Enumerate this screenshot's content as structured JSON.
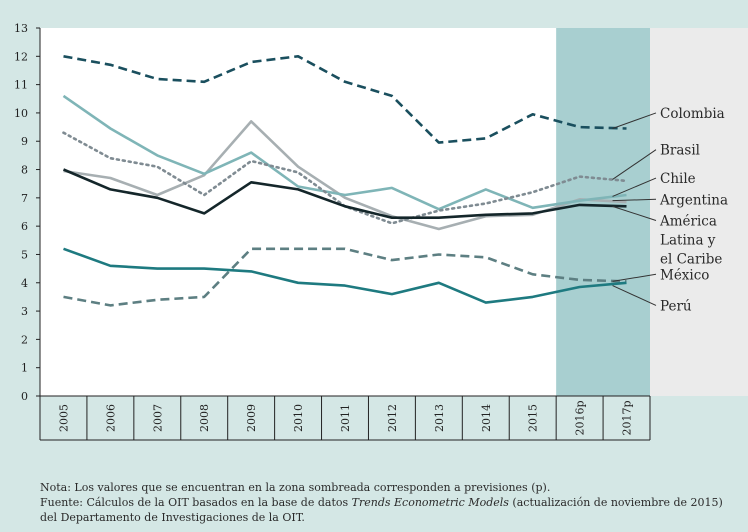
{
  "chart_data": {
    "type": "line",
    "categories": [
      "2005",
      "2006",
      "2007",
      "2008",
      "2009",
      "2010",
      "2011",
      "2012",
      "2013",
      "2014",
      "2015",
      "2016p",
      "2017p"
    ],
    "ylim": [
      0,
      13
    ],
    "yticks": [
      0,
      1,
      2,
      3,
      4,
      5,
      6,
      7,
      8,
      9,
      10,
      11,
      12,
      13
    ],
    "forecast_shaded_categories": [
      "2016p",
      "2017p"
    ],
    "grid": false,
    "series": [
      {
        "name": "Colombia",
        "color": "#1a4f5e",
        "dash": "dashed",
        "values": [
          12.0,
          11.7,
          11.2,
          11.1,
          11.8,
          12.0,
          11.1,
          10.6,
          8.95,
          9.1,
          9.95,
          9.5,
          9.45
        ]
      },
      {
        "name": "Brasil",
        "color": "#7f8b92",
        "dash": "dotted",
        "values": [
          9.3,
          8.4,
          8.1,
          7.1,
          8.3,
          7.9,
          6.7,
          6.1,
          6.55,
          6.8,
          7.2,
          7.75,
          7.6
        ]
      },
      {
        "name": "Chile",
        "color": "#7fb5b7",
        "dash": "solid",
        "values": [
          10.6,
          9.45,
          8.5,
          7.85,
          8.6,
          7.4,
          7.1,
          7.35,
          6.6,
          7.3,
          6.65,
          6.9,
          7.1
        ]
      },
      {
        "name": "Argentina",
        "color": "#a7afb2",
        "dash": "solid",
        "values": [
          7.95,
          7.7,
          7.1,
          7.8,
          9.7,
          8.1,
          7.0,
          6.35,
          5.9,
          6.35,
          6.4,
          6.95,
          6.85
        ]
      },
      {
        "name": "América Latina y el Caribe",
        "color": "#14262a",
        "dash": "solid",
        "values": [
          8.0,
          7.3,
          7.0,
          6.45,
          7.55,
          7.3,
          6.7,
          6.3,
          6.3,
          6.4,
          6.45,
          6.75,
          6.7
        ]
      },
      {
        "name": "México",
        "color": "#5d7f82",
        "dash": "dashed",
        "values": [
          3.5,
          3.2,
          3.4,
          3.5,
          5.2,
          5.2,
          5.2,
          4.8,
          5.0,
          4.9,
          4.3,
          4.1,
          4.05
        ]
      },
      {
        "name": "Perú",
        "color": "#1e7a80",
        "dash": "solid",
        "values": [
          5.2,
          4.6,
          4.5,
          4.5,
          4.4,
          4.0,
          3.9,
          3.6,
          4.0,
          3.3,
          3.5,
          3.85,
          4.0
        ]
      }
    ],
    "labels": [
      {
        "series": "Colombia",
        "lines": [
          "Colombia"
        ],
        "at": 9.45,
        "label_y": 10.0
      },
      {
        "series": "Brasil",
        "lines": [
          "Brasil"
        ],
        "at": 7.65,
        "label_y": 8.7
      },
      {
        "series": "Chile",
        "lines": [
          "Chile"
        ],
        "at": 7.05,
        "label_y": 7.7
      },
      {
        "series": "Argentina",
        "lines": [
          "Argentina"
        ],
        "at": 6.9,
        "label_y": 6.95
      },
      {
        "series": "América Latina y el Caribe",
        "lines": [
          "América",
          "Latina y",
          "el Caribe"
        ],
        "at": 6.7,
        "label_y": 6.2
      },
      {
        "series": "México",
        "lines": [
          "México"
        ],
        "at": 4.05,
        "label_y": 4.3
      },
      {
        "series": "Perú",
        "lines": [
          "Perú"
        ],
        "at": 3.9,
        "label_y": 3.2
      }
    ]
  },
  "notes": {
    "line1": "Nota: Los valores que se encuentran en la zona sombreada corresponden a previsiones (p).",
    "line2_prefix": "Fuente: Cálculos de la OIT basados en la base de datos ",
    "line2_italic": "Trends Econometric Models",
    "line2_suffix": " (actualización de noviembre de 2015)",
    "line3": "del Departamento de Investigaciones de la OIT."
  }
}
